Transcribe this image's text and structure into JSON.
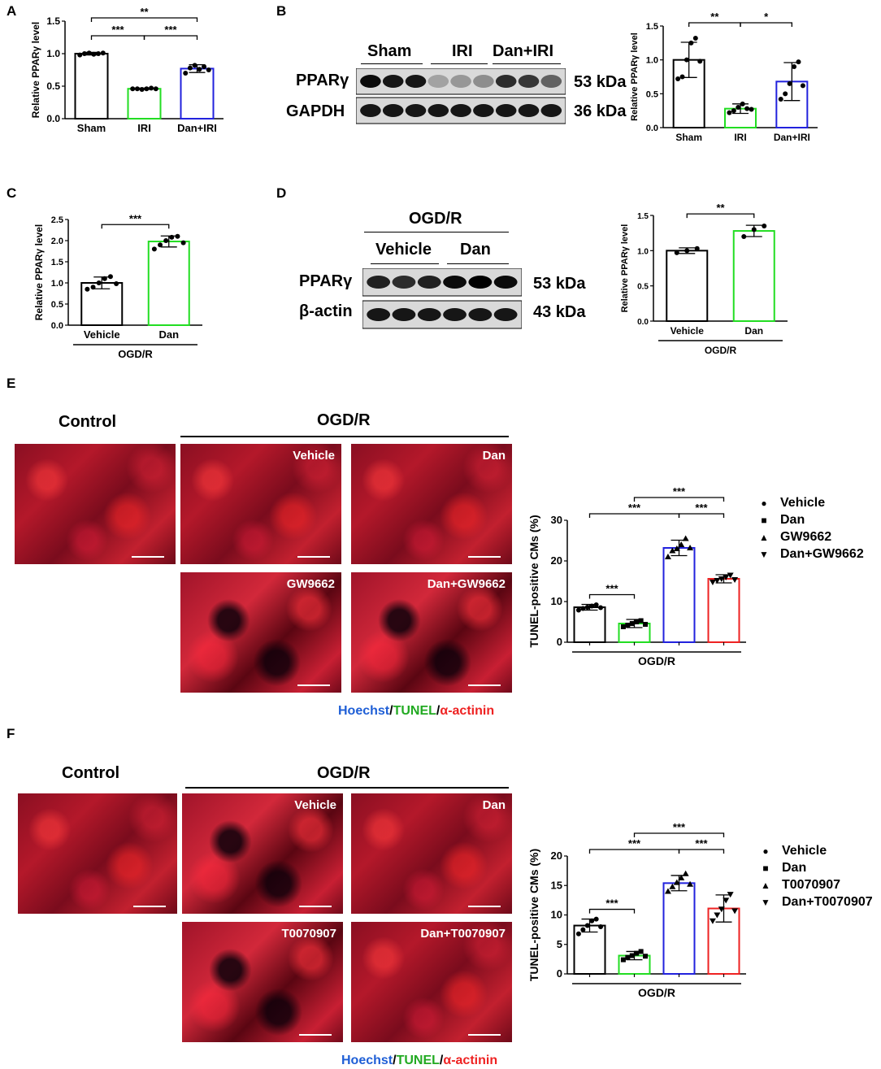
{
  "panels": {
    "A": {
      "label": "A",
      "chart_data": {
        "type": "bar",
        "ylabel": "Relative PPARγ level",
        "ylim": [
          0,
          1.5
        ],
        "yticks": [
          "0.0",
          "0.5",
          "1.0",
          "1.5"
        ],
        "categories": [
          "Sham",
          "IRI",
          "Dan+IRI"
        ],
        "values": [
          1.0,
          0.46,
          0.77
        ],
        "errors": [
          0.02,
          0.01,
          0.06
        ],
        "colors": [
          "#000000",
          "#22dd22",
          "#2222dd"
        ],
        "points": [
          [
            0.98,
            1.0,
            1.01,
            0.99,
            1.0,
            1.01
          ],
          [
            0.46,
            0.46,
            0.45,
            0.46,
            0.47,
            0.46
          ],
          [
            0.7,
            0.78,
            0.82,
            0.76,
            0.8,
            0.75
          ]
        ],
        "sig": [
          {
            "from": 0,
            "to": 2,
            "label": "**"
          },
          {
            "from": 0,
            "to": 1,
            "label": "***"
          },
          {
            "from": 1,
            "to": 2,
            "label": "***"
          }
        ]
      }
    },
    "B": {
      "label": "B",
      "blot": {
        "groups": [
          "Sham",
          "IRI",
          "Dan+IRI"
        ],
        "rows": [
          {
            "name": "PPARγ",
            "kda": "53 kDa"
          },
          {
            "name": "GAPDH",
            "kda": "36 kDa"
          }
        ]
      },
      "chart_data": {
        "type": "bar",
        "ylabel": "Relative PPARγ level",
        "ylim": [
          0,
          1.5
        ],
        "yticks": [
          "0.0",
          "0.5",
          "1.0",
          "1.5"
        ],
        "categories": [
          "Sham",
          "IRI",
          "Dan+IRI"
        ],
        "values": [
          1.0,
          0.28,
          0.68
        ],
        "errors": [
          0.26,
          0.07,
          0.28
        ],
        "colors": [
          "#000000",
          "#22dd22",
          "#2222dd"
        ],
        "points": [
          [
            0.72,
            0.75,
            1.0,
            1.25,
            1.32,
            0.98
          ],
          [
            0.22,
            0.25,
            0.3,
            0.35,
            0.28,
            0.27
          ],
          [
            0.42,
            0.5,
            0.65,
            0.9,
            0.97,
            0.62
          ]
        ],
        "sig": [
          {
            "from": 0,
            "to": 1,
            "label": "**"
          },
          {
            "from": 1,
            "to": 2,
            "label": "*"
          }
        ]
      }
    },
    "C": {
      "label": "C",
      "chart_data": {
        "type": "bar",
        "ylabel": "Relative PPARγ level",
        "ylim": [
          0,
          2.5
        ],
        "yticks": [
          "0.0",
          "0.5",
          "1.0",
          "1.5",
          "2.0",
          "2.5"
        ],
        "categories": [
          "Vehicle",
          "Dan"
        ],
        "values": [
          1.0,
          1.98
        ],
        "errors": [
          0.14,
          0.13
        ],
        "colors": [
          "#000000",
          "#22dd22"
        ],
        "points": [
          [
            0.85,
            0.9,
            1.0,
            1.1,
            1.15,
            0.98
          ],
          [
            1.8,
            1.9,
            2.0,
            2.08,
            2.1,
            1.95
          ]
        ],
        "group_label": "OGD/R",
        "sig": [
          {
            "from": 0,
            "to": 1,
            "label": "***"
          }
        ]
      }
    },
    "D": {
      "label": "D",
      "blot": {
        "header": "OGD/R",
        "groups": [
          "Vehicle",
          "Dan"
        ],
        "rows": [
          {
            "name": "PPARγ",
            "kda": "53 kDa"
          },
          {
            "name": "β-actin",
            "kda": "43 kDa"
          }
        ]
      },
      "chart_data": {
        "type": "bar",
        "ylabel": "Relative PPARγ level",
        "ylim": [
          0,
          1.5
        ],
        "yticks": [
          "0.0",
          "0.5",
          "1.0",
          "1.5"
        ],
        "categories": [
          "Vehicle",
          "Dan"
        ],
        "values": [
          1.0,
          1.28
        ],
        "errors": [
          0.04,
          0.08
        ],
        "colors": [
          "#000000",
          "#22dd22"
        ],
        "points": [
          [
            0.97,
            1.0,
            1.03
          ],
          [
            1.2,
            1.3,
            1.35
          ]
        ],
        "group_label": "OGD/R",
        "sig": [
          {
            "from": 0,
            "to": 1,
            "label": "**"
          }
        ]
      }
    },
    "E": {
      "label": "E",
      "control_label": "Control",
      "header": "OGD/R",
      "images": [
        "Vehicle",
        "Dan",
        "GW9662",
        "Dan+GW9662"
      ],
      "stain_hoechst": "Hoechst",
      "stain_tunel": "TUNEL",
      "stain_actinin": "α-actinin",
      "chart_data": {
        "type": "bar",
        "ylabel": "TUNEL-positive CMs (%)",
        "ylim": [
          0,
          30
        ],
        "yticks": [
          "0",
          "10",
          "20",
          "30"
        ],
        "categories": [
          "Vehicle",
          "Dan",
          "GW9662",
          "Dan+GW9662"
        ],
        "values": [
          8.6,
          4.6,
          23.2,
          15.6
        ],
        "errors": [
          0.7,
          1.0,
          1.9,
          1.0
        ],
        "colors": [
          "#000000",
          "#22dd22",
          "#2222dd",
          "#ee2222"
        ],
        "points": [
          [
            7.9,
            8.3,
            8.6,
            8.9,
            9.2,
            8.5
          ],
          [
            3.8,
            4.2,
            4.6,
            5.0,
            5.3,
            4.4
          ],
          [
            21,
            22.5,
            23,
            24,
            25.5,
            23.2
          ],
          [
            14.8,
            15.2,
            15.6,
            16.0,
            16.5,
            15.4
          ]
        ],
        "markers": [
          "circle",
          "square",
          "triangle-up",
          "triangle-down"
        ],
        "group_label": "OGD/R",
        "legend": [
          "Vehicle",
          "Dan",
          "GW9662",
          "Dan+GW9662"
        ],
        "sig": [
          {
            "from": 1,
            "to": 3,
            "label": "***"
          },
          {
            "from": 0,
            "to": 2,
            "label": "***"
          },
          {
            "from": 2,
            "to": 3,
            "label": "***"
          },
          {
            "from": 0,
            "to": 1,
            "label": "***"
          }
        ]
      }
    },
    "F": {
      "label": "F",
      "control_label": "Control",
      "header": "OGD/R",
      "images": [
        "Vehicle",
        "Dan",
        "T0070907",
        "Dan+T0070907"
      ],
      "stain_hoechst": "Hoechst",
      "stain_tunel": "TUNEL",
      "stain_actinin": "α-actinin",
      "chart_data": {
        "type": "bar",
        "ylabel": "TUNEL-positive CMs (%)",
        "ylim": [
          0,
          20
        ],
        "yticks": [
          "0",
          "5",
          "10",
          "15",
          "20"
        ],
        "categories": [
          "Vehicle",
          "Dan",
          "T0070907",
          "Dan+T0070907"
        ],
        "values": [
          8.2,
          3.1,
          15.4,
          11.1
        ],
        "errors": [
          1.1,
          0.7,
          1.3,
          2.3
        ],
        "colors": [
          "#000000",
          "#22dd22",
          "#2222dd",
          "#ee2222"
        ],
        "points": [
          [
            6.8,
            7.5,
            8.2,
            9.0,
            9.3,
            8.0
          ],
          [
            2.4,
            2.8,
            3.1,
            3.5,
            3.8,
            3.0
          ],
          [
            14,
            14.8,
            15.5,
            16.3,
            17,
            15.2
          ],
          [
            9.0,
            10.0,
            11.0,
            12.5,
            13.5,
            10.7
          ]
        ],
        "markers": [
          "circle",
          "square",
          "triangle-up",
          "triangle-down"
        ],
        "group_label": "OGD/R",
        "legend": [
          "Vehicle",
          "Dan",
          "T0070907",
          "Dan+T0070907"
        ],
        "sig": [
          {
            "from": 1,
            "to": 3,
            "label": "***"
          },
          {
            "from": 0,
            "to": 2,
            "label": "***"
          },
          {
            "from": 2,
            "to": 3,
            "label": "***"
          },
          {
            "from": 0,
            "to": 1,
            "label": "***"
          }
        ]
      }
    }
  }
}
